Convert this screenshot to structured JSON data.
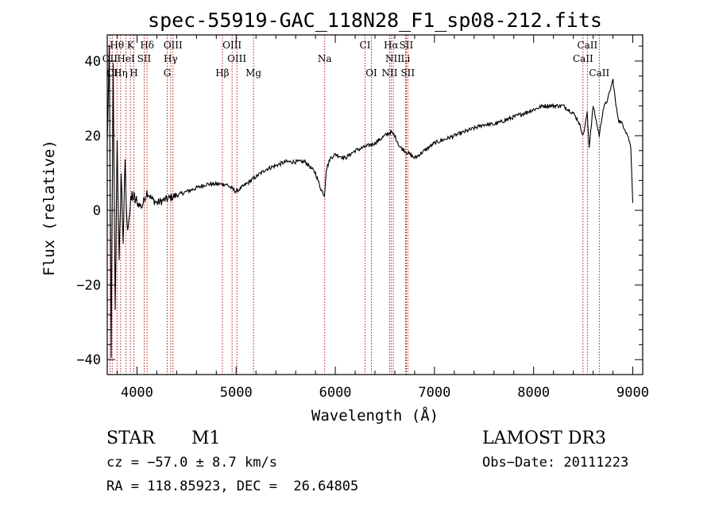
{
  "chart_data": {
    "type": "line",
    "title": "spec-55919-GAC_118N28_F1_sp08-212.fits",
    "xlabel": "Wavelength (Å)",
    "ylabel": "Flux (relative)",
    "xlim": [
      3700,
      9100
    ],
    "ylim": [
      -44,
      47
    ],
    "xticks": [
      4000,
      5000,
      6000,
      7000,
      8000,
      9000
    ],
    "yticks": [
      -40,
      -20,
      0,
      20,
      40
    ],
    "grid": false,
    "series": [
      {
        "name": "flux",
        "x": [
          3700,
          3720,
          3740,
          3760,
          3780,
          3800,
          3820,
          3840,
          3860,
          3880,
          3900,
          3950,
          4000,
          4050,
          4100,
          4150,
          4200,
          4300,
          4400,
          4500,
          4600,
          4700,
          4800,
          4900,
          5000,
          5100,
          5200,
          5300,
          5400,
          5500,
          5600,
          5700,
          5800,
          5850,
          5890,
          5910,
          5950,
          6000,
          6100,
          6200,
          6300,
          6400,
          6500,
          6560,
          6600,
          6650,
          6700,
          6750,
          6800,
          6900,
          7000,
          7100,
          7200,
          7300,
          7400,
          7500,
          7600,
          7700,
          7800,
          7900,
          8000,
          8100,
          8200,
          8300,
          8400,
          8450,
          8500,
          8540,
          8560,
          8600,
          8662,
          8700,
          8750,
          8800,
          8830,
          8860,
          8900,
          8950,
          8980,
          9000
        ],
        "values": [
          18,
          42,
          -38,
          38,
          -28,
          20,
          -15,
          10,
          -8,
          12,
          -5,
          4,
          2,
          1,
          5,
          3,
          2,
          3,
          4,
          5,
          6,
          7,
          7,
          7,
          5,
          7,
          9,
          11,
          12,
          13,
          13,
          13,
          10,
          6,
          4,
          11,
          14,
          15,
          14,
          16,
          17,
          18,
          20,
          21,
          20,
          17,
          16,
          15,
          14,
          16,
          18,
          19,
          20,
          21,
          22,
          23,
          23,
          24,
          25,
          26,
          27,
          28,
          28,
          28,
          26,
          24,
          20,
          26,
          17,
          28,
          20,
          27,
          30,
          35,
          28,
          24,
          23,
          20,
          17,
          2
        ]
      }
    ],
    "spectral_lines": [
      {
        "label": "Hθ",
        "x": 3798,
        "row": 0
      },
      {
        "label": "K",
        "x": 3934,
        "row": 0
      },
      {
        "label": "Hδ",
        "x": 4102,
        "row": 0
      },
      {
        "label": "OIII",
        "x": 4363,
        "row": 0
      },
      {
        "label": "OIII",
        "x": 4959,
        "row": 0
      },
      {
        "label": "CI",
        "x": 6300,
        "row": 0
      },
      {
        "label": "Hα",
        "x": 6563,
        "row": 0
      },
      {
        "label": "SII",
        "x": 6716,
        "row": 0
      },
      {
        "label": "CaII",
        "x": 8542,
        "row": 0
      },
      {
        "label": "OII",
        "x": 3727,
        "row": 1
      },
      {
        "label": "HeI",
        "x": 3889,
        "row": 1
      },
      {
        "label": "SII",
        "x": 4072,
        "row": 1
      },
      {
        "label": "Hγ",
        "x": 4340,
        "row": 1
      },
      {
        "label": "OIII",
        "x": 5007,
        "row": 1
      },
      {
        "label": "Na",
        "x": 5893,
        "row": 1
      },
      {
        "label": "NII",
        "x": 6584,
        "row": 1
      },
      {
        "label": "Li",
        "x": 6708,
        "row": 1
      },
      {
        "label": "CaII",
        "x": 8498,
        "row": 1
      },
      {
        "label": "OI",
        "x": 3750,
        "row": 2
      },
      {
        "label": "Hη",
        "x": 3835,
        "row": 2
      },
      {
        "label": "H",
        "x": 3968,
        "row": 2
      },
      {
        "label": "G",
        "x": 4305,
        "row": 2
      },
      {
        "label": "Hβ",
        "x": 4861,
        "row": 2
      },
      {
        "label": "Mg",
        "x": 5175,
        "row": 2
      },
      {
        "label": "OI",
        "x": 6364,
        "row": 2
      },
      {
        "label": "NII",
        "x": 6548,
        "row": 2
      },
      {
        "label": "SII",
        "x": 6731,
        "row": 2
      },
      {
        "label": "CaII",
        "x": 8662,
        "row": 2
      }
    ]
  },
  "info": {
    "object_class": "STAR",
    "subclass": "M1",
    "survey": "LAMOST DR3",
    "cz": "cz = −57.0 ± 8.7 km/s",
    "obs_date": "Obs−Date: 20111223",
    "coords": "RA = 118.85923, DEC =  26.64805"
  },
  "colors": {
    "line_marker": "#b00000",
    "spectrum": "#000000",
    "background": "#ffffff"
  }
}
